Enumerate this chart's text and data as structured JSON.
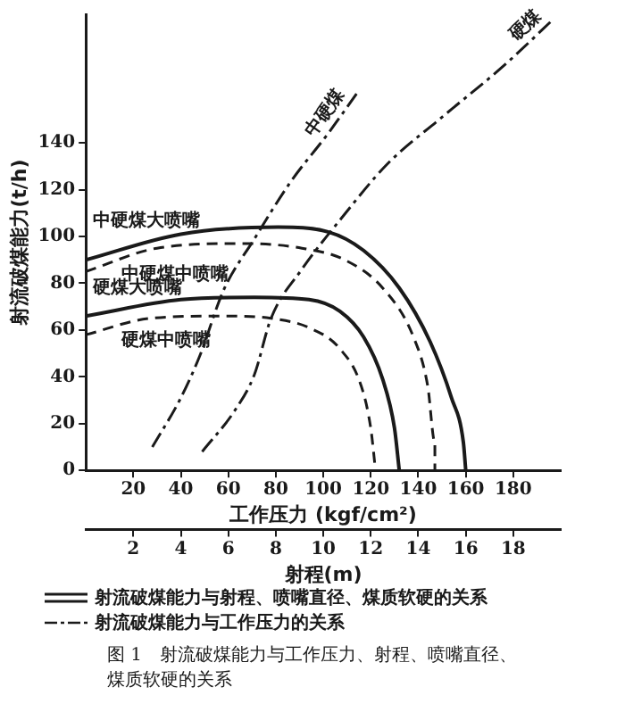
{
  "chart_data": {
    "type": "line",
    "xlabel": "工作压力 (kgf/cm²)",
    "ylabel": "射流破煤能力(t/h)",
    "x2label": "射程(m)",
    "xlim": [
      0,
      200
    ],
    "xticks": [
      20,
      40,
      60,
      80,
      100,
      120,
      140,
      160,
      180
    ],
    "x2lim": [
      0,
      20
    ],
    "x2ticks": [
      2,
      4,
      6,
      8,
      10,
      12,
      14,
      16,
      18
    ],
    "ylim": [
      0,
      195
    ],
    "yticks": [
      0,
      20,
      40,
      60,
      80,
      100,
      120,
      140
    ],
    "grid": false,
    "legend": false,
    "marker": "none",
    "series": [
      {
        "name": "中硬煤大喷嘴",
        "color": "#1a1a1a",
        "line_style": "solid",
        "x": [
          0,
          40,
          81,
          102,
          117,
          132,
          145,
          154,
          159,
          160
        ],
        "values": [
          90,
          101,
          104,
          102,
          94,
          78,
          55,
          31,
          12,
          0
        ]
      },
      {
        "name": "中硬煤中喷嘴",
        "color": "#1a1a1a",
        "line_style": "dashed",
        "x": [
          0,
          30,
          66,
          91,
          109,
          125,
          138,
          144,
          147,
          147
        ],
        "values": [
          85,
          95,
          97,
          95,
          90,
          78,
          57,
          36,
          12,
          0
        ]
      },
      {
        "name": "硬煤大喷嘴",
        "color": "#1a1a1a",
        "line_style": "solid",
        "x": [
          0,
          40,
          71,
          94,
          107,
          117,
          125,
          130,
          132
        ],
        "values": [
          66,
          73,
          74,
          73,
          68,
          57,
          39,
          18,
          0
        ]
      },
      {
        "name": "硬煤中喷嘴",
        "color": "#1a1a1a",
        "line_style": "dashed",
        "x": [
          0,
          27,
          58,
          78,
          94,
          107,
          116,
          120,
          122
        ],
        "values": [
          58,
          65,
          66,
          65,
          61,
          52,
          36,
          18,
          0
        ]
      },
      {
        "name": "中硬煤",
        "color": "#1a1a1a",
        "line_style": "dashdot",
        "x": [
          28,
          40,
          48,
          58,
          71,
          86,
          102,
          114
        ],
        "values": [
          10,
          31,
          49,
          77,
          99,
          123,
          144,
          161
        ]
      },
      {
        "name": "硬煤",
        "color": "#1a1a1a",
        "line_style": "dashdot",
        "x": [
          49,
          63,
          71,
          78,
          91,
          107,
          127,
          150,
          176,
          197
        ],
        "values": [
          8,
          26,
          41,
          65,
          86,
          107,
          131,
          151,
          173,
          193
        ]
      }
    ],
    "annotations": [
      "射流破煤能力与射程、喷嘴直径、煤质软硬的关系",
      "射流破煤能力与工作压力的关系",
      "图 1　射流破煤能力与工作压力、射程、喷嘴直径、煤质软硬的关系"
    ]
  }
}
